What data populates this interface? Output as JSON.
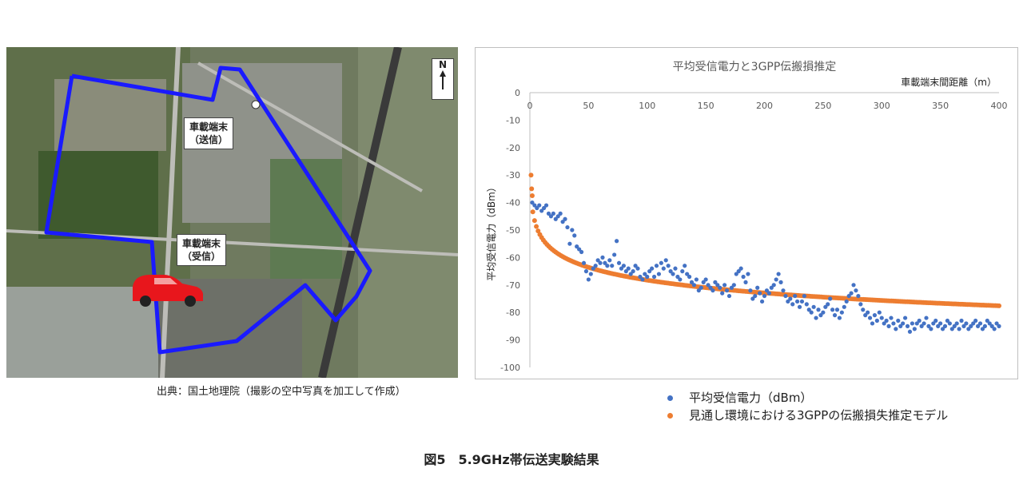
{
  "map": {
    "sender_label_line1": "車載端末",
    "sender_label_line2": "（送信）",
    "receiver_label_line1": "車載端末",
    "receiver_label_line2": "（受信）",
    "north_label": "N",
    "source": "出典：国土地理院（撮影の空中写真を加工して作成）",
    "route_color": "#1a1aff",
    "car_color": "#e8161c"
  },
  "chart_data": {
    "type": "scatter",
    "title": "平均受信電力と3GPP伝搬損推定",
    "xlabel": "車載端末間距離（m）",
    "ylabel": "平均受信電力（dBm）",
    "xlim": [
      0,
      400
    ],
    "ylim": [
      -100,
      0
    ],
    "x_ticks": [
      "0",
      "50",
      "100",
      "150",
      "200",
      "250",
      "300",
      "350",
      "400"
    ],
    "y_ticks": [
      "0",
      "-10",
      "-20",
      "-30",
      "-40",
      "-50",
      "-60",
      "-70",
      "-80",
      "-90",
      "-100"
    ],
    "grid": false,
    "x_axis_position": "top",
    "series": [
      {
        "name": "平均受信電力（dBm）",
        "color": "#4472c4",
        "marker": "dot",
        "points": [
          [
            2,
            -40
          ],
          [
            4,
            -41
          ],
          [
            6,
            -42
          ],
          [
            8,
            -41
          ],
          [
            10,
            -43
          ],
          [
            12,
            -42
          ],
          [
            14,
            -41
          ],
          [
            16,
            -44
          ],
          [
            18,
            -45
          ],
          [
            20,
            -44
          ],
          [
            22,
            -46
          ],
          [
            24,
            -45
          ],
          [
            26,
            -44
          ],
          [
            28,
            -47
          ],
          [
            30,
            -46
          ],
          [
            32,
            -49
          ],
          [
            34,
            -55
          ],
          [
            36,
            -50
          ],
          [
            38,
            -52
          ],
          [
            40,
            -56
          ],
          [
            42,
            -57
          ],
          [
            44,
            -58
          ],
          [
            46,
            -62
          ],
          [
            48,
            -65
          ],
          [
            50,
            -68
          ],
          [
            52,
            -66
          ],
          [
            54,
            -64
          ],
          [
            56,
            -63
          ],
          [
            58,
            -61
          ],
          [
            60,
            -62
          ],
          [
            62,
            -60
          ],
          [
            64,
            -62
          ],
          [
            66,
            -63
          ],
          [
            68,
            -61
          ],
          [
            70,
            -63
          ],
          [
            72,
            -59
          ],
          [
            74,
            -54
          ],
          [
            76,
            -62
          ],
          [
            78,
            -64
          ],
          [
            80,
            -63
          ],
          [
            82,
            -65
          ],
          [
            84,
            -64
          ],
          [
            86,
            -66
          ],
          [
            88,
            -65
          ],
          [
            90,
            -63
          ],
          [
            92,
            -64
          ],
          [
            94,
            -67
          ],
          [
            96,
            -68
          ],
          [
            98,
            -66
          ],
          [
            100,
            -67
          ],
          [
            102,
            -65
          ],
          [
            104,
            -64
          ],
          [
            106,
            -67
          ],
          [
            108,
            -63
          ],
          [
            110,
            -66
          ],
          [
            112,
            -62
          ],
          [
            114,
            -64
          ],
          [
            116,
            -61
          ],
          [
            118,
            -63
          ],
          [
            120,
            -65
          ],
          [
            122,
            -66
          ],
          [
            124,
            -64
          ],
          [
            126,
            -67
          ],
          [
            128,
            -68
          ],
          [
            130,
            -65
          ],
          [
            132,
            -63
          ],
          [
            134,
            -66
          ],
          [
            136,
            -67
          ],
          [
            138,
            -69
          ],
          [
            140,
            -70
          ],
          [
            142,
            -68
          ],
          [
            144,
            -72
          ],
          [
            146,
            -71
          ],
          [
            148,
            -69
          ],
          [
            150,
            -68
          ],
          [
            152,
            -70
          ],
          [
            154,
            -71
          ],
          [
            156,
            -72
          ],
          [
            158,
            -69
          ],
          [
            160,
            -70
          ],
          [
            162,
            -71
          ],
          [
            164,
            -73
          ],
          [
            166,
            -70
          ],
          [
            168,
            -72
          ],
          [
            170,
            -74
          ],
          [
            172,
            -71
          ],
          [
            174,
            -70
          ],
          [
            176,
            -66
          ],
          [
            178,
            -65
          ],
          [
            180,
            -64
          ],
          [
            182,
            -67
          ],
          [
            184,
            -69
          ],
          [
            186,
            -66
          ],
          [
            188,
            -72
          ],
          [
            190,
            -75
          ],
          [
            192,
            -74
          ],
          [
            194,
            -71
          ],
          [
            196,
            -73
          ],
          [
            198,
            -76
          ],
          [
            200,
            -74
          ],
          [
            202,
            -72
          ],
          [
            204,
            -73
          ],
          [
            206,
            -71
          ],
          [
            208,
            -70
          ],
          [
            210,
            -68
          ],
          [
            212,
            -66
          ],
          [
            214,
            -69
          ],
          [
            216,
            -72
          ],
          [
            218,
            -74
          ],
          [
            220,
            -76
          ],
          [
            222,
            -75
          ],
          [
            224,
            -77
          ],
          [
            226,
            -74
          ],
          [
            228,
            -76
          ],
          [
            230,
            -78
          ],
          [
            232,
            -76
          ],
          [
            234,
            -74
          ],
          [
            236,
            -77
          ],
          [
            238,
            -79
          ],
          [
            240,
            -80
          ],
          [
            242,
            -78
          ],
          [
            244,
            -82
          ],
          [
            246,
            -79
          ],
          [
            248,
            -81
          ],
          [
            250,
            -80
          ],
          [
            252,
            -78
          ],
          [
            254,
            -77
          ],
          [
            256,
            -75
          ],
          [
            258,
            -79
          ],
          [
            260,
            -81
          ],
          [
            262,
            -79
          ],
          [
            264,
            -82
          ],
          [
            266,
            -80
          ],
          [
            268,
            -78
          ],
          [
            270,
            -76
          ],
          [
            272,
            -74
          ],
          [
            274,
            -73
          ],
          [
            276,
            -70
          ],
          [
            278,
            -72
          ],
          [
            280,
            -74
          ],
          [
            282,
            -77
          ],
          [
            284,
            -79
          ],
          [
            286,
            -81
          ],
          [
            288,
            -80
          ],
          [
            290,
            -82
          ],
          [
            292,
            -84
          ],
          [
            294,
            -81
          ],
          [
            296,
            -83
          ],
          [
            298,
            -80
          ],
          [
            300,
            -82
          ],
          [
            302,
            -84
          ],
          [
            304,
            -83
          ],
          [
            306,
            -85
          ],
          [
            308,
            -82
          ],
          [
            310,
            -84
          ],
          [
            312,
            -86
          ],
          [
            314,
            -83
          ],
          [
            316,
            -85
          ],
          [
            318,
            -84
          ],
          [
            320,
            -82
          ],
          [
            322,
            -85
          ],
          [
            324,
            -87
          ],
          [
            326,
            -84
          ],
          [
            328,
            -86
          ],
          [
            330,
            -84
          ],
          [
            332,
            -83
          ],
          [
            334,
            -85
          ],
          [
            336,
            -84
          ],
          [
            338,
            -82
          ],
          [
            340,
            -85
          ],
          [
            342,
            -86
          ],
          [
            344,
            -84
          ],
          [
            346,
            -83
          ],
          [
            348,
            -85
          ],
          [
            350,
            -84
          ],
          [
            352,
            -86
          ],
          [
            354,
            -85
          ],
          [
            356,
            -83
          ],
          [
            358,
            -84
          ],
          [
            360,
            -86
          ],
          [
            362,
            -85
          ],
          [
            364,
            -84
          ],
          [
            366,
            -86
          ],
          [
            368,
            -83
          ],
          [
            370,
            -85
          ],
          [
            372,
            -84
          ],
          [
            374,
            -86
          ],
          [
            376,
            -85
          ],
          [
            378,
            -84
          ],
          [
            380,
            -83
          ],
          [
            382,
            -85
          ],
          [
            384,
            -84
          ],
          [
            386,
            -86
          ],
          [
            388,
            -85
          ],
          [
            390,
            -83
          ],
          [
            392,
            -84
          ],
          [
            394,
            -85
          ],
          [
            396,
            -86
          ],
          [
            398,
            -84
          ],
          [
            400,
            -85
          ]
        ]
      },
      {
        "name": "見通し環境における3GPPの伝搬損失推定モデル",
        "color": "#ed7d31",
        "marker": "dot",
        "model": {
          "a": -41.9,
          "b": -15.5,
          "x_from": 1,
          "x_to": 400,
          "form": "a + b*log10(x/2)"
        },
        "extra_points": [
          [
            1,
            -30
          ],
          [
            1.5,
            -35
          ],
          [
            2,
            -37.5
          ]
        ]
      }
    ]
  },
  "caption": "図5　5.9GHz帯伝送実験結果"
}
